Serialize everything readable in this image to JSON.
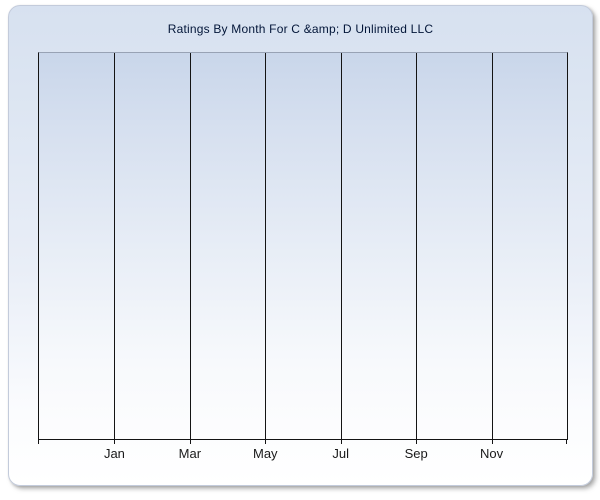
{
  "chart_data": {
    "type": "bar",
    "title": "Ratings By Month For C &amp; D Unlimited LLC",
    "categories": [
      "Jan",
      "Mar",
      "May",
      "Jul",
      "Sep",
      "Nov"
    ],
    "series": [],
    "values": [],
    "xlabel": "",
    "ylabel": "",
    "x_intervals": 7,
    "y_tick_labels": [],
    "grid": "vertical-only",
    "legend": "none",
    "note": "Empty plot area: no bars, data points, or y-axis ticks are rendered; months label every second vertical gridline"
  },
  "colors": {
    "panel_background_top": "#d7e1f0",
    "panel_background_bottom": "#ffffff",
    "plot_background_top": "#c9d6ea",
    "plot_background_bottom": "#fdfdfe",
    "gridline": "#141414",
    "plot_top_border": "#98a2b4",
    "title_text": "#021538",
    "axis_label_text": "#1a1a1a",
    "panel_border": "#c3cbdb",
    "shadow": "#828282"
  }
}
